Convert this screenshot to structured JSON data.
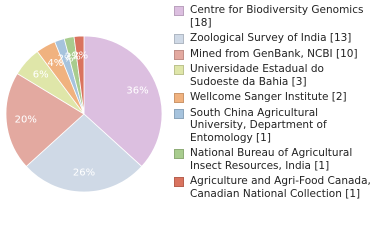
{
  "chart_data": {
    "type": "pie",
    "categories": [
      "Centre for Biodiversity Genomics [18]",
      "Zoological Survey of India [13]",
      "Mined from GenBank, NCBI [10]",
      "Universidade Estadual do Sudoeste da Bahia [3]",
      "Wellcome Sanger Institute [2]",
      "South China Agricultural University, Department of Entomology [1]",
      "National Bureau of Agricultural Insect Resources, India [1]",
      "Agriculture and Agri-Food Canada, Canadian National Collection [1]"
    ],
    "values": [
      36,
      26,
      20,
      6,
      4,
      2,
      2,
      2
    ],
    "value_labels": [
      "36%",
      "26%",
      "20%",
      "6%",
      "4%",
      "2%",
      "2%",
      "2%"
    ],
    "colors": [
      "#dcbfe0",
      "#cfd9e6",
      "#e3a9a0",
      "#dfe6a9",
      "#f0b27f",
      "#a6c3dd",
      "#a8cc8e",
      "#d9735f"
    ]
  }
}
